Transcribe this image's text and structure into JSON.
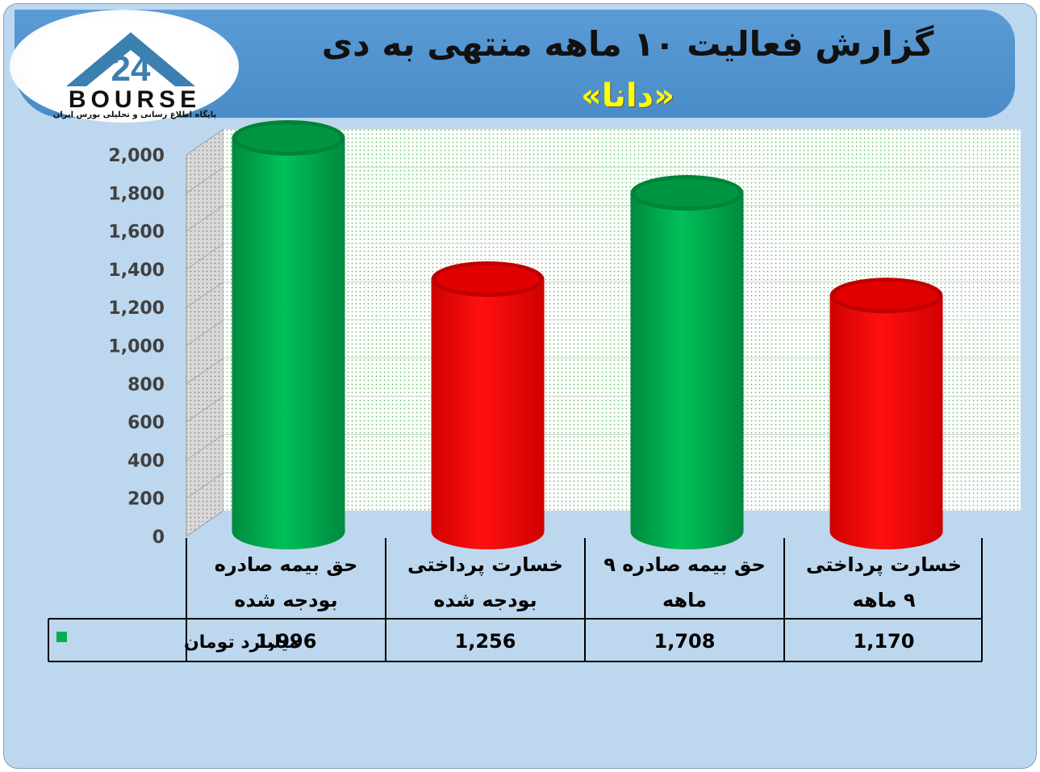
{
  "header": {
    "title": "گزارش فعالیت ۱۰ ماهه منتهی به دی",
    "subtitle": "«دانا»"
  },
  "logo": {
    "word": "BOURSE",
    "subtitle": "پایگاه اطلاع رسانی و تحلیلی بورس ایران"
  },
  "chart_data": {
    "type": "bar",
    "style": "3d-cylinder",
    "categories": [
      [
        "حق بیمه صادره",
        "بودجه شده"
      ],
      [
        "خسارت پرداختی",
        "بودجه شده"
      ],
      [
        "حق بیمه صادره ۹",
        "ماهه"
      ],
      [
        "خسارت پرداختی",
        "۹ ماهه"
      ]
    ],
    "series": [
      {
        "name": "میلیارد تومان",
        "values": [
          1996,
          1256,
          1708,
          1170
        ],
        "value_labels": [
          "1,996",
          "1,256",
          "1,708",
          "1,170"
        ],
        "legend_color": "#00b050"
      }
    ],
    "bar_colors": [
      "#00b050",
      "#ff0000",
      "#00b050",
      "#ff0000"
    ],
    "yticks": [
      "0",
      "200",
      "400",
      "600",
      "800",
      "1,000",
      "1,200",
      "1,400",
      "1,600",
      "1,800",
      "2,000"
    ],
    "ylim": [
      0,
      2000
    ],
    "grid": true,
    "data_table": true
  }
}
